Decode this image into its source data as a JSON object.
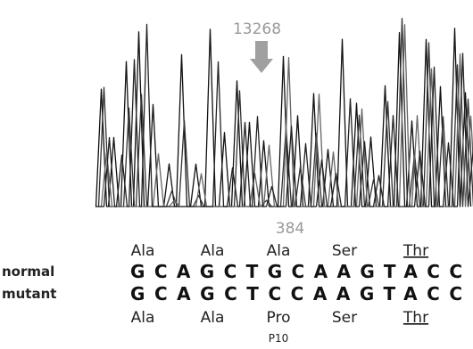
{
  "trace_annotation": "13268",
  "position": "384",
  "normal": {
    "label": "normal",
    "sequence": "GCAGCTGCAAGTACC",
    "amino_acids": [
      "Ala",
      "Ala",
      "Ala",
      "Ser",
      "Thr"
    ]
  },
  "mutant": {
    "label": "mutant",
    "sequence": "GCAGCTCCAAGTACC",
    "amino_acids": [
      "Ala",
      "Ala",
      "Pro",
      "Ser",
      "Thr"
    ]
  },
  "mutation_label": "P10"
}
